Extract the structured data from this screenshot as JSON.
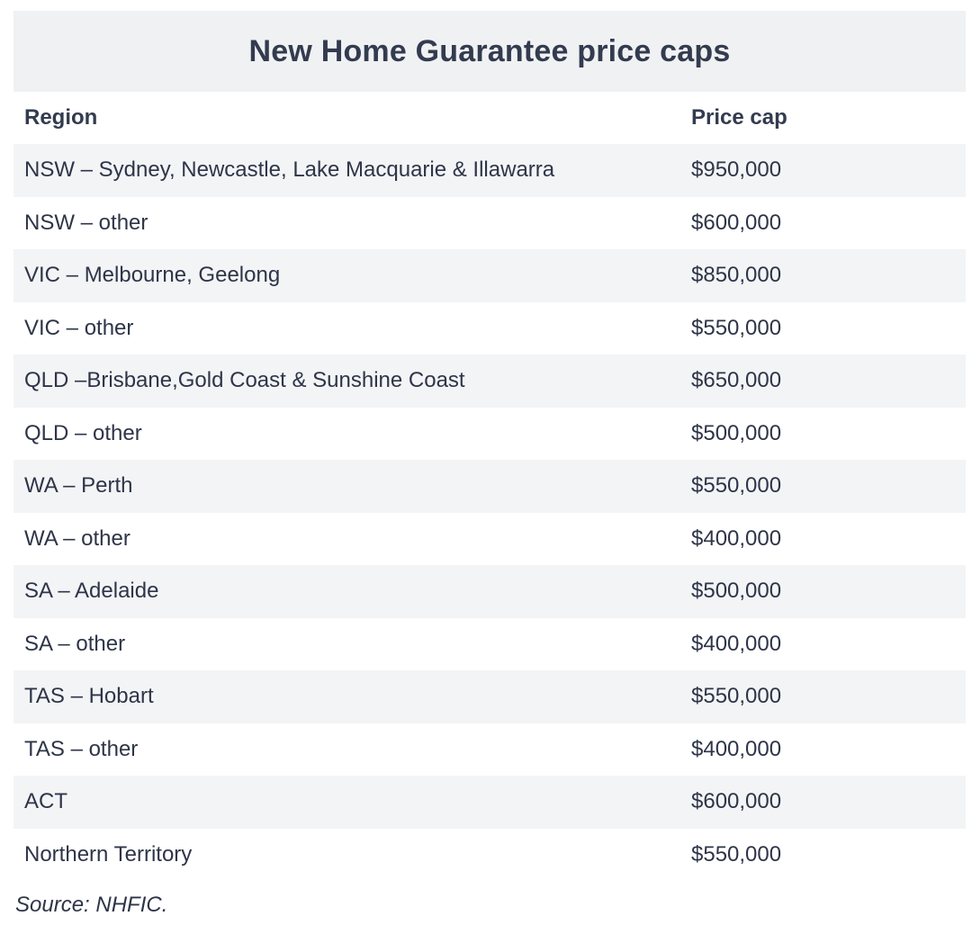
{
  "table": {
    "title": "New Home Guarantee price caps",
    "headers": [
      "Region",
      "Price cap"
    ],
    "rows": [
      {
        "region": "NSW – Sydney, Newcastle, Lake Macquarie & Illawarra",
        "cap": "$950,000"
      },
      {
        "region": "NSW – other",
        "cap": "$600,000"
      },
      {
        "region": "VIC – Melbourne, Geelong",
        "cap": "$850,000"
      },
      {
        "region": "VIC – other",
        "cap": "$550,000"
      },
      {
        "region": "QLD –Brisbane,Gold Coast & Sunshine Coast",
        "cap": "$650,000"
      },
      {
        "region": "QLD – other",
        "cap": "$500,000"
      },
      {
        "region": "WA – Perth",
        "cap": "$550,000"
      },
      {
        "region": "WA – other",
        "cap": "$400,000"
      },
      {
        "region": "SA – Adelaide",
        "cap": "$500,000"
      },
      {
        "region": "SA – other",
        "cap": "$400,000"
      },
      {
        "region": "TAS – Hobart",
        "cap": "$550,000"
      },
      {
        "region": "TAS – other",
        "cap": "$400,000"
      },
      {
        "region": "ACT",
        "cap": "$600,000"
      },
      {
        "region": "Northern Territory",
        "cap": "$550,000"
      }
    ]
  },
  "source": "Source: NHFIC."
}
